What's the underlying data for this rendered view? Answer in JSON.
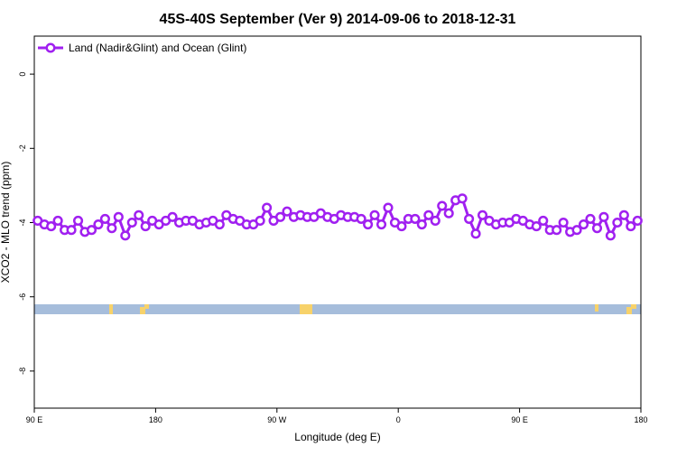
{
  "chart_data": {
    "type": "line",
    "title": "45S-40S September (Ver 9)   2014-09-06 to 2018-12-31",
    "xlabel": "Longitude (deg E)",
    "ylabel": "XCO2 - MLO trend (ppm)",
    "xlim": [
      90,
      540
    ],
    "ylim": [
      -9,
      1
    ],
    "xticks": [
      {
        "value": 90,
        "label": "90 E"
      },
      180,
      {
        "value": 270,
        "label": "90 W"
      },
      {
        "value": 360,
        "label": "0"
      },
      {
        "value": 450,
        "label": "90 E"
      },
      {
        "value": 540,
        "label": "180"
      }
    ],
    "yticks": [
      0,
      -2,
      -4,
      -6,
      -8
    ],
    "legend": "upper left",
    "x": [
      92.5,
      97.5,
      102.5,
      107.5,
      112.5,
      117.5,
      122.5,
      127.5,
      132.5,
      137.5,
      142.5,
      147.5,
      152.5,
      157.5,
      162.5,
      167.5,
      172.5,
      177.5,
      182.5,
      187.5,
      192.5,
      197.5,
      202.5,
      207.5,
      212.5,
      217.5,
      222.5,
      227.5,
      232.5,
      237.5,
      242.5,
      247.5,
      252.5,
      257.5,
      262.5,
      267.5,
      272.5,
      277.5,
      282.5,
      287.5,
      292.5,
      297.5,
      302.5,
      307.5,
      312.5,
      317.5,
      322.5,
      327.5,
      332.5,
      337.5,
      342.5,
      347.5,
      352.5,
      357.5,
      362.5,
      367.5,
      372.5,
      377.5,
      382.5,
      387.5,
      392.5,
      397.5,
      402.5,
      407.5,
      412.5,
      417.5,
      422.5,
      427.5,
      432.5,
      437.5,
      442.5,
      447.5,
      452.5,
      457.5,
      462.5,
      467.5,
      472.5,
      477.5,
      482.5,
      487.5,
      492.5,
      497.5,
      502.5,
      507.5,
      512.5,
      517.5,
      522.5,
      527.5,
      532.5,
      537.5
    ],
    "series": [
      {
        "name": "Land (Nadir&Glint) and Ocean (Glint)",
        "color": "#a020f0",
        "values": [
          -3.95,
          -4.05,
          -4.1,
          -3.95,
          -4.2,
          -4.2,
          -3.95,
          -4.25,
          -4.2,
          -4.05,
          -3.9,
          -4.15,
          -3.85,
          -4.35,
          -4.0,
          -3.8,
          -4.1,
          -3.95,
          -4.05,
          -3.95,
          -3.85,
          -4.0,
          -3.95,
          -3.95,
          -4.05,
          -4.0,
          -3.95,
          -4.05,
          -3.8,
          -3.9,
          -3.95,
          -4.05,
          -4.05,
          -3.95,
          -3.6,
          -3.95,
          -3.85,
          -3.7,
          -3.85,
          -3.8,
          -3.85,
          -3.85,
          -3.75,
          -3.85,
          -3.9,
          -3.8,
          -3.85,
          -3.85,
          -3.9,
          -4.05,
          -3.8,
          -4.05,
          -3.6,
          -4.0,
          -4.1,
          -3.9,
          -3.9,
          -4.05,
          -3.8,
          -3.95,
          -3.55,
          -3.75,
          -3.4,
          -3.35,
          -3.9,
          -4.3,
          -3.8,
          -3.95,
          -4.05,
          -4.0,
          -4.0,
          -3.9,
          -3.95,
          -4.05,
          -4.1,
          -3.95,
          -4.2,
          -4.2,
          -4.0,
          -4.25,
          -4.2,
          -4.05,
          -3.9,
          -4.15,
          -3.85,
          -4.35,
          -4.0,
          -3.8,
          -4.1,
          -3.95
        ]
      }
    ]
  }
}
